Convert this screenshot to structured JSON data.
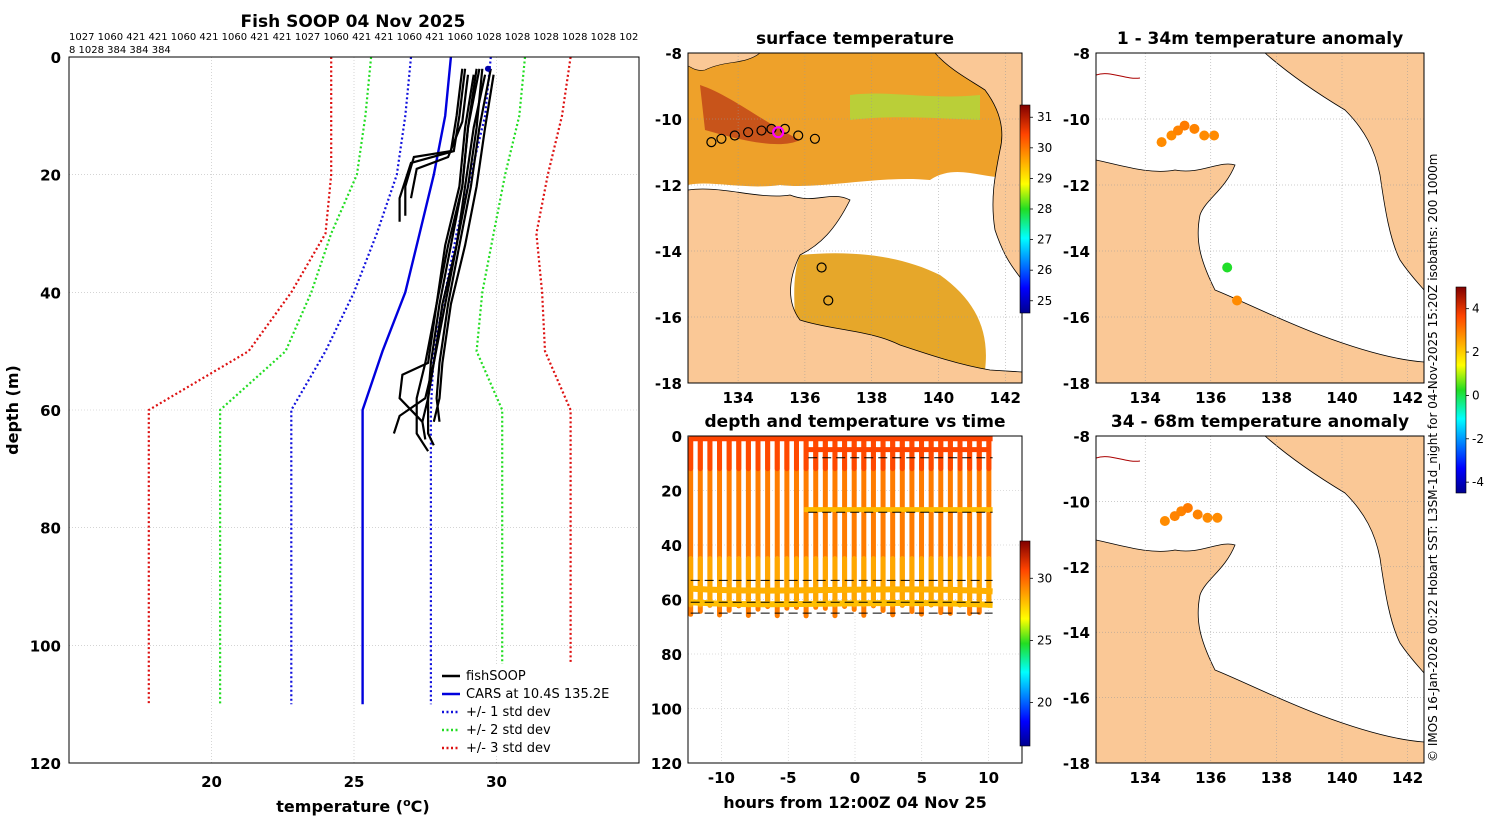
{
  "chart_data": [
    {
      "type": "line",
      "title": "Fish SOOP 04 Nov 2025",
      "subtitle_lines": [
        "1027 1060 421 421 1060 421 1060 421 421 1027 1060 421 421 1060 421 1060 1028 1028 1028 1028 1028 102",
        "8 1028 384 384 384"
      ],
      "xlabel": "temperature (",
      "xlabel_sup": "o",
      "xlabel_tail": "C)",
      "ylabel": "depth (m)",
      "xlim": [
        15,
        35
      ],
      "ylim": [
        0,
        120
      ],
      "xticks": [
        "20",
        "25",
        "30"
      ],
      "xtick_values": [
        20,
        25,
        30
      ],
      "yticks": [
        "0",
        "20",
        "40",
        "60",
        "80",
        "100",
        "120"
      ],
      "ytick_values": [
        0,
        20,
        40,
        60,
        80,
        100,
        120
      ],
      "grid": true,
      "legend": {
        "location": "bottom-right",
        "entries": [
          "fishSOOP",
          "CARS at 10.4S 135.2E",
          "+/- 1 std dev",
          "+/- 2 std dev",
          "+/- 3 std dev"
        ]
      },
      "series": [
        {
          "name": "CARS at 10.4S 135.2E",
          "color": "#0000dd",
          "style": "solid",
          "points": [
            [
              28.4,
              0
            ],
            [
              28.2,
              10
            ],
            [
              27.8,
              20
            ],
            [
              27.3,
              30
            ],
            [
              26.8,
              40
            ],
            [
              26.0,
              50
            ],
            [
              25.3,
              60
            ],
            [
              25.3,
              110
            ]
          ]
        },
        {
          "name": "+1 std dev",
          "color": "#1111dd",
          "style": "dotted",
          "points": [
            [
              29.8,
              0
            ],
            [
              29.6,
              10
            ],
            [
              29.1,
              20
            ],
            [
              28.6,
              30
            ],
            [
              28.2,
              40
            ],
            [
              27.8,
              50
            ],
            [
              27.7,
              60
            ],
            [
              27.7,
              110
            ]
          ]
        },
        {
          "name": "-1 std dev",
          "color": "#1111dd",
          "style": "dotted",
          "points": [
            [
              27.0,
              0
            ],
            [
              26.8,
              10
            ],
            [
              26.5,
              20
            ],
            [
              25.8,
              30
            ],
            [
              25.0,
              40
            ],
            [
              24.0,
              50
            ],
            [
              22.8,
              60
            ],
            [
              22.8,
              110
            ]
          ]
        },
        {
          "name": "+2 std dev",
          "color": "#22dd22",
          "style": "dotted",
          "points": [
            [
              31.0,
              0
            ],
            [
              30.8,
              10
            ],
            [
              30.3,
              20
            ],
            [
              29.9,
              30
            ],
            [
              29.5,
              40
            ],
            [
              29.3,
              50
            ],
            [
              30.2,
              60
            ],
            [
              30.2,
              110
            ]
          ]
        },
        {
          "name": "-2 std dev",
          "color": "#22dd22",
          "style": "dotted",
          "points": [
            [
              25.6,
              0
            ],
            [
              25.4,
              10
            ],
            [
              25.1,
              20
            ],
            [
              24.2,
              30
            ],
            [
              23.5,
              40
            ],
            [
              22.6,
              50
            ],
            [
              20.3,
              60
            ],
            [
              20.3,
              110
            ]
          ]
        },
        {
          "name": "+3 std dev",
          "color": "#dd1111",
          "style": "dotted",
          "points": [
            [
              32.6,
              0
            ],
            [
              32.3,
              10
            ],
            [
              31.8,
              20
            ],
            [
              31.4,
              30
            ],
            [
              31.6,
              40
            ],
            [
              31.7,
              50
            ],
            [
              32.6,
              60
            ],
            [
              32.6,
              110
            ]
          ]
        },
        {
          "name": "-3 std dev",
          "color": "#dd1111",
          "style": "dotted",
          "points": [
            [
              24.2,
              0
            ],
            [
              24.2,
              10
            ],
            [
              24.2,
              20
            ],
            [
              24.0,
              30
            ],
            [
              22.8,
              40
            ],
            [
              21.3,
              50
            ],
            [
              17.8,
              60
            ],
            [
              17.8,
              110
            ]
          ]
        }
      ],
      "fishsoop_profiles": [
        [
          [
            28.8,
            2
          ],
          [
            28.6,
            10
          ],
          [
            28.4,
            16
          ],
          [
            27.1,
            17
          ],
          [
            26.8,
            22
          ],
          [
            26.8,
            27
          ]
        ],
        [
          [
            28.9,
            2
          ],
          [
            28.7,
            10
          ],
          [
            28.5,
            16
          ],
          [
            27.0,
            18
          ],
          [
            26.6,
            24
          ],
          [
            26.6,
            28
          ]
        ],
        [
          [
            29.0,
            3
          ],
          [
            28.8,
            11
          ],
          [
            28.3,
            17
          ],
          [
            27.2,
            19
          ],
          [
            27.0,
            24
          ]
        ],
        [
          [
            29.4,
            2
          ],
          [
            29.0,
            12
          ],
          [
            28.8,
            22
          ],
          [
            28.4,
            32
          ],
          [
            28.0,
            42
          ],
          [
            27.7,
            52
          ],
          [
            27.6,
            58
          ],
          [
            27.6,
            64
          ],
          [
            27.8,
            66
          ]
        ],
        [
          [
            29.6,
            3
          ],
          [
            29.2,
            12
          ],
          [
            28.9,
            22
          ],
          [
            28.6,
            32
          ],
          [
            28.2,
            42
          ],
          [
            27.8,
            52
          ],
          [
            27.5,
            58
          ],
          [
            26.6,
            61
          ],
          [
            26.4,
            64
          ]
        ],
        [
          [
            29.8,
            2
          ],
          [
            29.4,
            12
          ],
          [
            29.1,
            22
          ],
          [
            28.7,
            32
          ],
          [
            28.3,
            42
          ],
          [
            28.0,
            52
          ],
          [
            27.9,
            58
          ],
          [
            28.0,
            62
          ]
        ],
        [
          [
            29.2,
            3
          ],
          [
            28.9,
            12
          ],
          [
            28.7,
            22
          ],
          [
            28.2,
            32
          ],
          [
            27.9,
            42
          ],
          [
            27.5,
            52
          ],
          [
            27.2,
            58
          ],
          [
            27.2,
            64
          ],
          [
            27.6,
            67
          ]
        ],
        [
          [
            29.5,
            2
          ],
          [
            29.3,
            12
          ],
          [
            29.0,
            22
          ],
          [
            28.6,
            32
          ],
          [
            28.1,
            42
          ],
          [
            27.8,
            52
          ],
          [
            27.6,
            58
          ],
          [
            27.4,
            62
          ],
          [
            27.5,
            65
          ]
        ],
        [
          [
            29.9,
            3
          ],
          [
            29.6,
            12
          ],
          [
            29.3,
            22
          ],
          [
            28.9,
            32
          ],
          [
            28.4,
            42
          ],
          [
            28.1,
            52
          ],
          [
            28.0,
            58
          ],
          [
            27.8,
            62
          ]
        ],
        [
          [
            29.3,
            2
          ],
          [
            29.0,
            12
          ],
          [
            28.8,
            22
          ],
          [
            28.3,
            32
          ],
          [
            27.9,
            42
          ],
          [
            27.6,
            52
          ],
          [
            26.7,
            54
          ],
          [
            26.6,
            58
          ],
          [
            27.4,
            62
          ]
        ]
      ],
      "xbt_marker": {
        "temperature": 29.7,
        "depth": 2
      }
    },
    {
      "type": "heatmap",
      "title": "surface temperature",
      "xlim": [
        132.5,
        142.5
      ],
      "ylim": [
        -18,
        -8
      ],
      "xticks": [
        "134",
        "136",
        "138",
        "140",
        "142"
      ],
      "xtick_values": [
        134,
        136,
        138,
        140,
        142
      ],
      "yticks": [
        "-8",
        "-10",
        "-12",
        "-14",
        "-16",
        "-18"
      ],
      "ytick_values": [
        -8,
        -10,
        -12,
        -14,
        -16,
        -18
      ],
      "colorbar": {
        "ticks": [
          "25",
          "26",
          "27",
          "28",
          "29",
          "30",
          "31"
        ],
        "range": [
          24.6,
          31.4
        ]
      },
      "sample_markers": [
        [
          133.2,
          -10.7
        ],
        [
          133.5,
          -10.6
        ],
        [
          133.9,
          -10.5
        ],
        [
          134.3,
          -10.4
        ],
        [
          134.7,
          -10.35
        ],
        [
          135.0,
          -10.3
        ],
        [
          135.4,
          -10.3
        ],
        [
          135.8,
          -10.5
        ],
        [
          136.3,
          -10.6
        ],
        [
          136.5,
          -14.5
        ],
        [
          136.7,
          -15.5
        ]
      ],
      "current_marker": [
        135.2,
        -10.4
      ]
    },
    {
      "type": "scatter",
      "title": "depth and temperature vs time",
      "xlabel": "hours from 12:00Z 04 Nov 25",
      "xlim": [
        -12.5,
        12.5
      ],
      "ylim": [
        0,
        120
      ],
      "xticks": [
        "-10",
        "-5",
        "0",
        "5",
        "10"
      ],
      "xtick_values": [
        -10,
        -5,
        0,
        5,
        10
      ],
      "yticks": [
        "0",
        "20",
        "40",
        "60",
        "80",
        "100",
        "120"
      ],
      "ytick_values": [
        0,
        20,
        40,
        60,
        80,
        100,
        120
      ],
      "colorbar": {
        "ticks": [
          "20",
          "25",
          "30"
        ],
        "range": [
          16.5,
          33
        ]
      },
      "casts": [
        {
          "start": -12.3,
          "end": 10.3,
          "top": 1,
          "bottom": 62
        },
        {
          "start": -3.8,
          "end": 10.3,
          "top": 27,
          "bottom": 27
        },
        {
          "start": -3.5,
          "end": 10.1,
          "top": 5,
          "bottom": 5
        }
      ],
      "reference_lines": [
        -11.8,
        -3.5,
        10.3
      ]
    },
    {
      "type": "scatter",
      "title": "1 - 34m temperature anomaly",
      "xlim": [
        132.5,
        142.5
      ],
      "ylim": [
        -18,
        -8
      ],
      "xticks": [
        "134",
        "136",
        "138",
        "140",
        "142"
      ],
      "xtick_values": [
        134,
        136,
        138,
        140,
        142
      ],
      "yticks": [
        "-8",
        "-10",
        "-12",
        "-14",
        "-16",
        "-18"
      ],
      "ytick_values": [
        -8,
        -10,
        -12,
        -14,
        -16,
        -18
      ],
      "points": [
        [
          134.5,
          -10.7,
          2.8
        ],
        [
          134.8,
          -10.5,
          2.8
        ],
        [
          135.0,
          -10.35,
          2.9
        ],
        [
          135.2,
          -10.2,
          3.0
        ],
        [
          135.5,
          -10.3,
          2.9
        ],
        [
          135.8,
          -10.5,
          2.8
        ],
        [
          136.1,
          -10.5,
          2.8
        ],
        [
          136.5,
          -14.5,
          0.2
        ],
        [
          136.8,
          -15.5,
          2.8
        ]
      ]
    },
    {
      "type": "scatter",
      "title": "34 - 68m temperature anomaly",
      "xlim": [
        132.5,
        142.5
      ],
      "ylim": [
        -18,
        -8
      ],
      "xticks": [
        "134",
        "136",
        "138",
        "140",
        "142"
      ],
      "xtick_values": [
        134,
        136,
        138,
        140,
        142
      ],
      "yticks": [
        "-8",
        "-10",
        "-12",
        "-14",
        "-16",
        "-18"
      ],
      "ytick_values": [
        -8,
        -10,
        -12,
        -14,
        -16,
        -18
      ],
      "points": [
        [
          134.6,
          -10.6,
          2.8
        ],
        [
          134.9,
          -10.45,
          2.9
        ],
        [
          135.1,
          -10.3,
          2.9
        ],
        [
          135.3,
          -10.2,
          3.0
        ],
        [
          135.6,
          -10.4,
          2.9
        ],
        [
          135.9,
          -10.5,
          2.8
        ],
        [
          136.2,
          -10.5,
          2.8
        ]
      ],
      "colorbar": {
        "ticks": [
          "4",
          "2",
          "0",
          "-2",
          "-4"
        ],
        "range": [
          -4.5,
          5
        ]
      }
    }
  ],
  "vertical_note": "© IMOS 16-Jan-2026 00:22 Hobart SST: L3SM-1d_night for 04-Nov-2025 15:20Z isobaths: 200  1000m"
}
